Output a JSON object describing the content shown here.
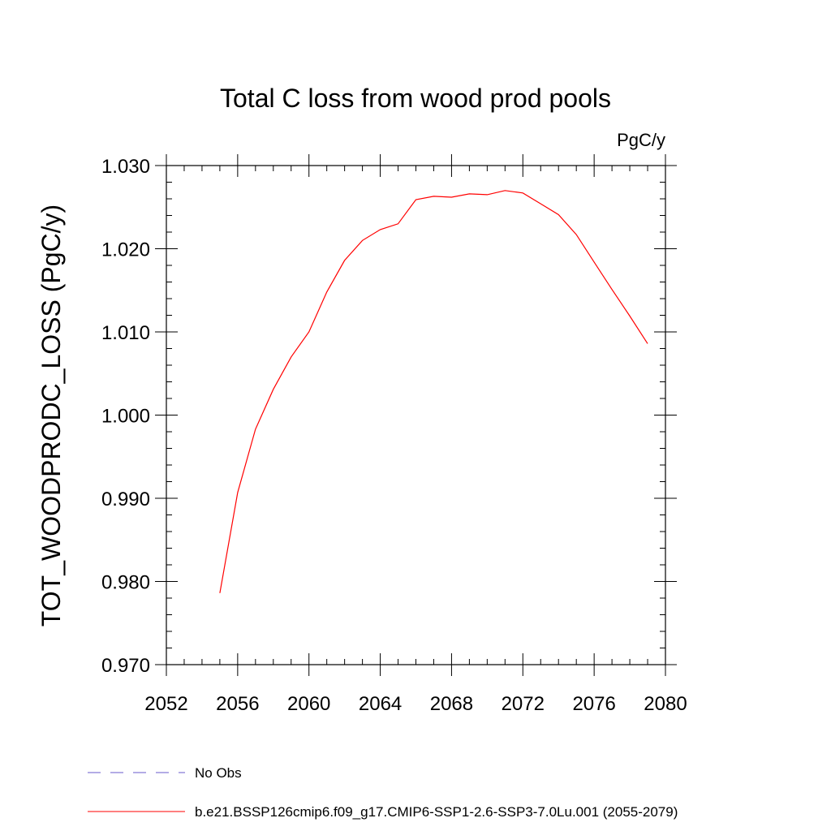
{
  "chart_data": {
    "type": "line",
    "title": "Total C loss from wood prod pools",
    "units_label": "PgC/y",
    "ylabel": "TOT_WOODPRODC_LOSS  (PgC/y)",
    "xlabel": "",
    "xlim": [
      2052,
      2080
    ],
    "ylim": [
      0.97,
      1.03
    ],
    "x_ticks": [
      2052,
      2056,
      2060,
      2064,
      2068,
      2072,
      2076,
      2080
    ],
    "x_tick_labels": [
      "2052",
      "2056",
      "2060",
      "2064",
      "2068",
      "2072",
      "2076",
      "2080"
    ],
    "y_ticks": [
      0.97,
      0.98,
      0.99,
      1.0,
      1.01,
      1.02,
      1.03
    ],
    "y_tick_labels": [
      "0.970",
      "0.980",
      "0.990",
      "1.000",
      "1.010",
      "1.020",
      "1.030"
    ],
    "grid": false,
    "legend_position": "bottom-left",
    "series": [
      {
        "name": "No Obs",
        "color": "#6a5acd",
        "dash": true,
        "x": [],
        "values": []
      },
      {
        "name": "b.e21.BSSP126cmip6.f09_g17.CMIP6-SSP1-2.6-SSP3-7.0Lu.001 (2055-2079)",
        "color": "#ff0000",
        "dash": false,
        "x": [
          2055,
          2056,
          2057,
          2058,
          2059,
          2060,
          2061,
          2062,
          2063,
          2064,
          2065,
          2066,
          2067,
          2068,
          2069,
          2070,
          2071,
          2072,
          2073,
          2074,
          2075,
          2076,
          2077,
          2078,
          2079
        ],
        "values": [
          0.9786,
          0.9907,
          0.9983,
          1.0031,
          1.007,
          1.01,
          1.0148,
          1.0186,
          1.021,
          1.0223,
          1.023,
          1.0259,
          1.0263,
          1.0262,
          1.0266,
          1.0265,
          1.027,
          1.0267,
          1.0254,
          1.0241,
          1.0217,
          1.0184,
          1.0151,
          1.0119,
          1.0086
        ]
      }
    ]
  }
}
